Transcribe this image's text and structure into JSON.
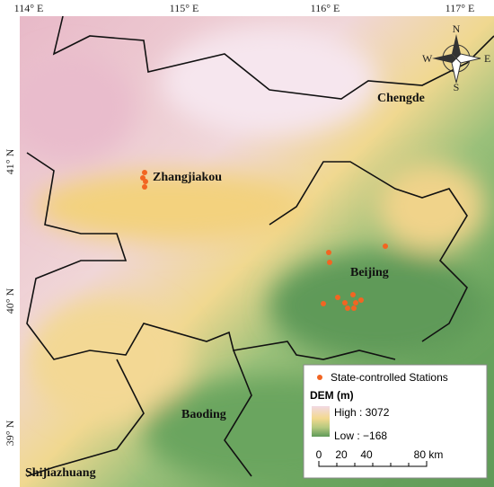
{
  "map": {
    "lon_labels": [
      "114° E",
      "115° E",
      "116° E",
      "117° E"
    ],
    "lat_labels": [
      "41° N",
      "40° N",
      "39° N"
    ],
    "places": [
      "Chengde",
      "Zhangjiakou",
      "Beijing",
      "Baoding",
      "Shijiazhuang"
    ],
    "compass": {
      "n": "N",
      "s": "S",
      "e": "E",
      "w": "W"
    },
    "legend": {
      "stations": "State-controlled Stations",
      "dem_title": "DEM (m)",
      "high": "High : 3072",
      "low": "Low : −168",
      "scale_labels": [
        "0",
        "20",
        "40",
        "80 km"
      ]
    }
  }
}
